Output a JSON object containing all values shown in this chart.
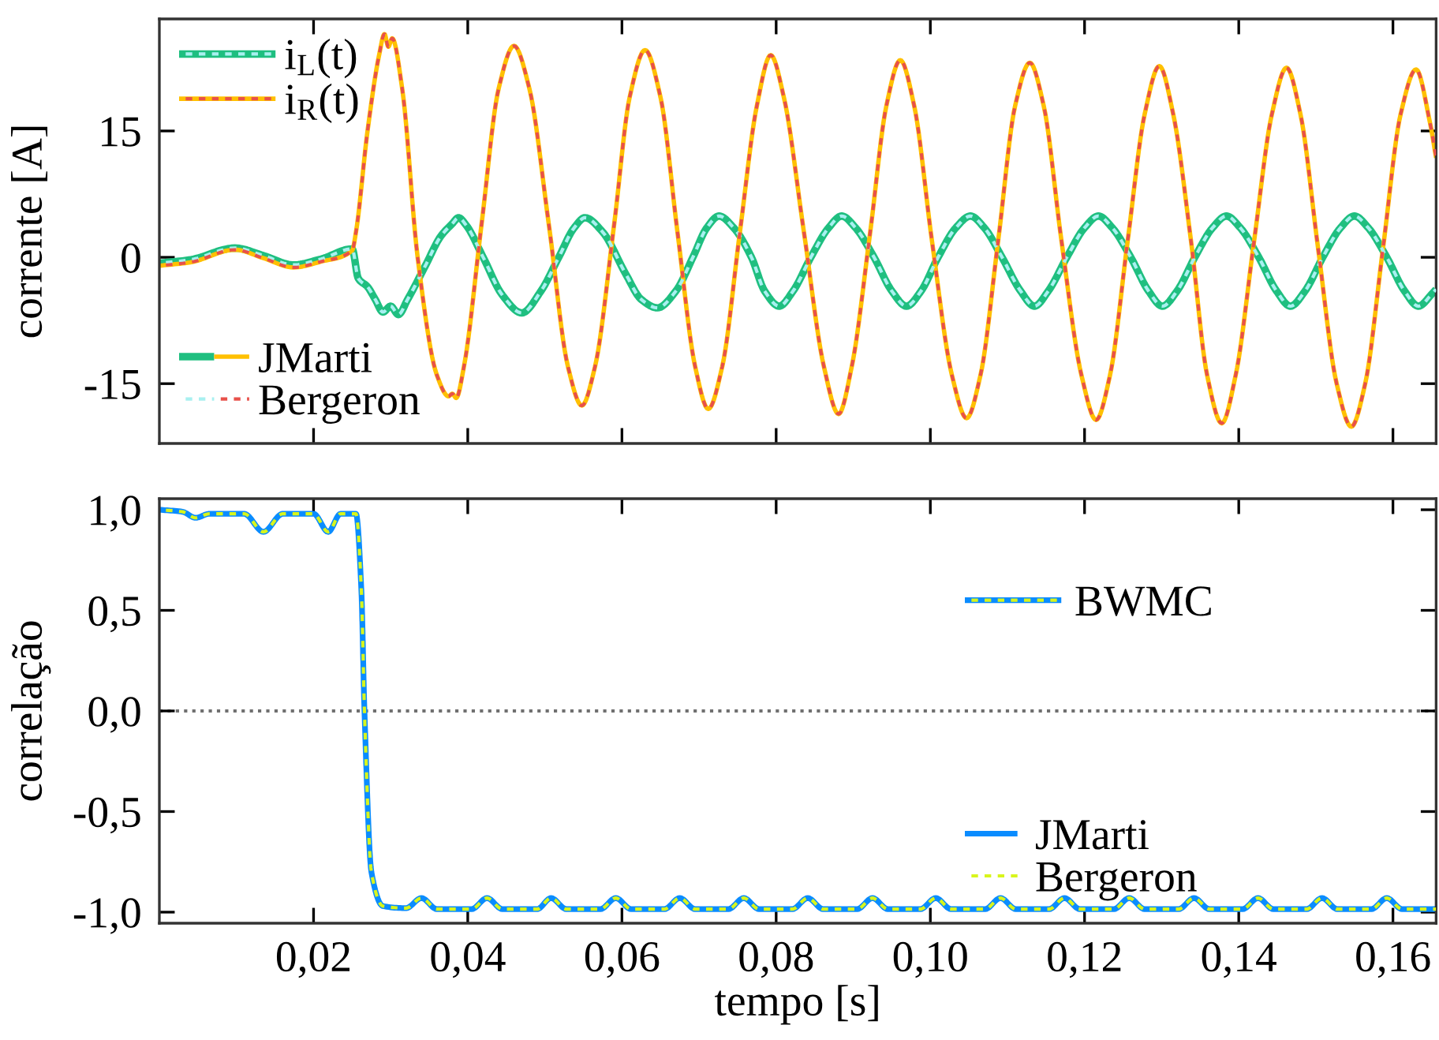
{
  "chart_data": [
    {
      "type": "line",
      "ylabel": "corrente [A]",
      "xlim": [
        0,
        0.1656
      ],
      "ylim": [
        -22.1,
        28.3
      ],
      "xticks": [
        {
          "value": 0.02,
          "label": null
        },
        {
          "value": 0.04,
          "label": null
        },
        {
          "value": 0.06,
          "label": null
        },
        {
          "value": 0.08,
          "label": null
        },
        {
          "value": 0.1,
          "label": null
        },
        {
          "value": 0.12,
          "label": null
        },
        {
          "value": 0.14,
          "label": null
        },
        {
          "value": 0.16,
          "label": null
        }
      ],
      "yticks": [
        {
          "value": -15,
          "label": "-15"
        },
        0,
        15
      ],
      "tick_labels": "y",
      "legend": "top left",
      "grid": false,
      "annotations": [
        "JMarti",
        "Bergeron"
      ],
      "series": [
        {
          "name": "i$_{L}$(t)",
          "color": "#1fbf80",
          "line_style": "solid",
          "x": [
            0,
            0.004,
            0.0098,
            0.0135,
            0.0174,
            0.021,
            0.025,
            0.0258,
            0.027,
            0.028,
            0.029,
            0.03,
            0.031,
            0.0322,
            0.0345,
            0.0365,
            0.038,
            0.0388,
            0.0398,
            0.042,
            0.0445,
            0.047,
            0.0495,
            0.0518,
            0.0538,
            0.0552,
            0.0575,
            0.0605,
            0.0625,
            0.0646,
            0.067,
            0.0692,
            0.071,
            0.0726,
            0.0745,
            0.0768,
            0.0785,
            0.0804,
            0.0822,
            0.0845,
            0.0868,
            0.0885,
            0.0903,
            0.0927,
            0.095,
            0.0969,
            0.0988,
            0.101,
            0.1033,
            0.1052,
            0.107,
            0.1093,
            0.1117,
            0.1135,
            0.1153,
            0.1177,
            0.12,
            0.1218,
            0.1236,
            0.126,
            0.1283,
            0.1301,
            0.132,
            0.1343,
            0.1366,
            0.1384,
            0.1402,
            0.1426,
            0.1449,
            0.1467,
            0.1486,
            0.1509,
            0.1532,
            0.155,
            0.1568,
            0.1592,
            0.1615,
            0.1633,
            0.1651,
            0.1656
          ],
          "values": [
            -0.7,
            -0.3,
            1.1,
            0.2,
            -0.9,
            -0.2,
            1.0,
            -2.5,
            -3.5,
            -5,
            -6.5,
            -5.8,
            -6.8,
            -5,
            -1,
            2.5,
            4.0,
            4.7,
            3.8,
            0,
            -4.5,
            -6.6,
            -4,
            0,
            3.5,
            4.7,
            3,
            -2,
            -5,
            -6.0,
            -4,
            0,
            3.5,
            4.9,
            3.5,
            0,
            -4,
            -5.8,
            -4,
            0,
            3.5,
            4.9,
            3.5,
            0,
            -4,
            -5.8,
            -4,
            0,
            3.5,
            4.9,
            3.5,
            0,
            -4,
            -5.8,
            -4,
            0,
            3.5,
            4.9,
            3.5,
            0,
            -4,
            -5.8,
            -4,
            0,
            3.5,
            4.9,
            3.5,
            0,
            -4,
            -5.8,
            -4,
            0,
            3.5,
            4.9,
            3.5,
            0,
            -4,
            -5.8,
            -4.3,
            -3.8
          ]
        },
        {
          "color": "#a8f0f0",
          "line_style": "dashed",
          "x": [
            0,
            0.004,
            0.0098,
            0.0135,
            0.0174,
            0.021,
            0.025,
            0.0258,
            0.027,
            0.028,
            0.029,
            0.03,
            0.031,
            0.0322,
            0.0345,
            0.0365,
            0.038,
            0.0388,
            0.0398,
            0.042,
            0.0445,
            0.047,
            0.0495,
            0.0518,
            0.0538,
            0.0552,
            0.0575,
            0.0605,
            0.0625,
            0.0646,
            0.067,
            0.0692,
            0.071,
            0.0726,
            0.0745,
            0.0768,
            0.0785,
            0.0804,
            0.0822,
            0.0845,
            0.0868,
            0.0885,
            0.0903,
            0.0927,
            0.095,
            0.0969,
            0.0988,
            0.101,
            0.1033,
            0.1052,
            0.107,
            0.1093,
            0.1117,
            0.1135,
            0.1153,
            0.1177,
            0.12,
            0.1218,
            0.1236,
            0.126,
            0.1283,
            0.1301,
            0.132,
            0.1343,
            0.1366,
            0.1384,
            0.1402,
            0.1426,
            0.1449,
            0.1467,
            0.1486,
            0.1509,
            0.1532,
            0.155,
            0.1568,
            0.1592,
            0.1615,
            0.1633,
            0.1651,
            0.1656
          ],
          "values": [
            -0.7,
            -0.3,
            1.1,
            0.2,
            -0.9,
            -0.2,
            1.0,
            -2.5,
            -3.5,
            -5,
            -6.5,
            -5.8,
            -6.8,
            -5,
            -1,
            2.5,
            4.0,
            4.7,
            3.8,
            0,
            -4.5,
            -6.6,
            -4,
            0,
            3.5,
            4.7,
            3,
            -2,
            -5,
            -6.0,
            -4,
            0,
            3.5,
            4.9,
            3.5,
            0,
            -4,
            -5.8,
            -4,
            0,
            3.5,
            4.9,
            3.5,
            0,
            -4,
            -5.8,
            -4,
            0,
            3.5,
            4.9,
            3.5,
            0,
            -4,
            -5.8,
            -4,
            0,
            3.5,
            4.9,
            3.5,
            0,
            -4,
            -5.8,
            -4,
            0,
            3.5,
            4.9,
            3.5,
            0,
            -4,
            -5.8,
            -4,
            0,
            3.5,
            4.9,
            3.5,
            0,
            -4,
            -5.8,
            -4.3,
            -3.8
          ]
        },
        {
          "name": "i$_{R}$(t)",
          "color": "#ffc000",
          "line_style": "solid",
          "x": [
            0,
            0.004,
            0.0098,
            0.0135,
            0.0174,
            0.021,
            0.025,
            0.0255,
            0.027,
            0.0285,
            0.0292,
            0.0297,
            0.0302,
            0.0315,
            0.0335,
            0.036,
            0.0375,
            0.038,
            0.0385,
            0.0395,
            0.0418,
            0.044,
            0.046,
            0.048,
            0.0505,
            0.053,
            0.0548,
            0.0565,
            0.059,
            0.061,
            0.063,
            0.065,
            0.0672,
            0.0695,
            0.0712,
            0.073,
            0.0753,
            0.0775,
            0.0793,
            0.081,
            0.0836,
            0.0862,
            0.0881,
            0.0898,
            0.0922,
            0.0943,
            0.0961,
            0.0979,
            0.1002,
            0.1028,
            0.1047,
            0.1065,
            0.1088,
            0.111,
            0.1129,
            0.1147,
            0.117,
            0.1196,
            0.1215,
            0.1233,
            0.1256,
            0.1278,
            0.1297,
            0.1315,
            0.1338,
            0.1359,
            0.1378,
            0.1396,
            0.142,
            0.1443,
            0.1462,
            0.148,
            0.1503,
            0.1527,
            0.1546,
            0.1564,
            0.1587,
            0.161,
            0.163,
            0.1648,
            0.1656
          ],
          "values": [
            -1.0,
            -0.6,
            0.9,
            -0.1,
            -1.2,
            -0.5,
            0.8,
            3,
            15,
            24,
            26.5,
            25,
            26,
            20,
            0,
            -14,
            -16.5,
            -16.2,
            -16.7,
            -13,
            4,
            20,
            25.1,
            20,
            4,
            -13,
            -17.6,
            -13,
            4,
            19,
            24.6,
            19,
            3,
            -13,
            -18,
            -13,
            3,
            18,
            24.0,
            19,
            3,
            -13,
            -18.6,
            -13,
            3,
            18,
            23.4,
            18,
            2,
            -14,
            -19.1,
            -14,
            2,
            18,
            23.1,
            18,
            2,
            -14,
            -19.3,
            -14,
            2,
            17,
            22.7,
            17,
            2,
            -14,
            -19.7,
            -14,
            2,
            17,
            22.5,
            17,
            1,
            -15,
            -20.1,
            -15,
            1,
            17,
            22.3,
            16,
            11.8
          ]
        },
        {
          "color": "#e8504a",
          "line_style": "dashed",
          "x": [
            0,
            0.004,
            0.0098,
            0.0135,
            0.0174,
            0.021,
            0.025,
            0.0255,
            0.027,
            0.0285,
            0.0292,
            0.0297,
            0.0302,
            0.0315,
            0.0335,
            0.036,
            0.0375,
            0.038,
            0.0385,
            0.0395,
            0.0418,
            0.044,
            0.046,
            0.048,
            0.0505,
            0.053,
            0.0548,
            0.0565,
            0.059,
            0.061,
            0.063,
            0.065,
            0.0672,
            0.0695,
            0.0712,
            0.073,
            0.0753,
            0.0775,
            0.0793,
            0.081,
            0.0836,
            0.0862,
            0.0881,
            0.0898,
            0.0922,
            0.0943,
            0.0961,
            0.0979,
            0.1002,
            0.1028,
            0.1047,
            0.1065,
            0.1088,
            0.111,
            0.1129,
            0.1147,
            0.117,
            0.1196,
            0.1215,
            0.1233,
            0.1256,
            0.1278,
            0.1297,
            0.1315,
            0.1338,
            0.1359,
            0.1378,
            0.1396,
            0.142,
            0.1443,
            0.1462,
            0.148,
            0.1503,
            0.1527,
            0.1546,
            0.1564,
            0.1587,
            0.161,
            0.163,
            0.1648,
            0.1656
          ],
          "values": [
            -1.0,
            -0.6,
            0.9,
            -0.1,
            -1.2,
            -0.5,
            0.8,
            3,
            15,
            24,
            26.5,
            25,
            26,
            20,
            0,
            -14,
            -16.5,
            -16.2,
            -16.7,
            -13,
            4,
            20,
            25.1,
            20,
            4,
            -13,
            -17.6,
            -13,
            4,
            19,
            24.6,
            19,
            3,
            -13,
            -18,
            -13,
            3,
            18,
            24.0,
            19,
            3,
            -13,
            -18.6,
            -13,
            3,
            18,
            23.4,
            18,
            2,
            -14,
            -19.1,
            -14,
            2,
            18,
            23.1,
            18,
            2,
            -14,
            -19.3,
            -14,
            2,
            17,
            22.7,
            17,
            2,
            -14,
            -19.7,
            -14,
            2,
            17,
            22.5,
            17,
            1,
            -15,
            -20.1,
            -15,
            1,
            17,
            22.3,
            16,
            11.8
          ]
        }
      ]
    },
    {
      "type": "line",
      "xlabel": "tempo [s]",
      "ylabel": "correlação",
      "xlim": [
        0,
        0.1656
      ],
      "ylim": [
        -1.055,
        1.055
      ],
      "xticks": [
        {
          "value": 0.02,
          "label": "0,02"
        },
        {
          "value": 0.04,
          "label": "0,04"
        },
        {
          "value": 0.06,
          "label": "0,06"
        },
        {
          "value": 0.08,
          "label": "0,08"
        },
        {
          "value": 0.1,
          "label": "0,10"
        },
        {
          "value": 0.12,
          "label": "0,12"
        },
        {
          "value": 0.14,
          "label": "0,14"
        },
        {
          "value": 0.16,
          "label": "0,16"
        }
      ],
      "yticks": [
        {
          "value": -1,
          "label": "-1,0"
        },
        {
          "value": -0.5,
          "label": "-0,5"
        },
        {
          "value": 0,
          "label": "0,0"
        },
        {
          "value": 0.5,
          "label": "0,5"
        },
        {
          "value": 1,
          "label": "1,0"
        }
      ],
      "legend": "bottom",
      "grid": false,
      "annotations": [
        "BWMC"
      ],
      "ref_lines": [
        {
          "axis": "y",
          "value": 0,
          "color": "#707070",
          "line_style": "dotted"
        }
      ],
      "series": [
        {
          "name": "JMarti",
          "color": "#0a8cff",
          "line_style": "solid",
          "x": [
            0,
            0.003,
            0.0047,
            0.0065,
            0.011,
            0.0135,
            0.016,
            0.02,
            0.0219,
            0.0235,
            0.0255,
            0.0262,
            0.0266,
            0.0275,
            0.029,
            0.032,
            0.034,
            0.036,
            0.0405,
            0.0425,
            0.0445,
            0.049,
            0.0508,
            0.0528,
            0.0572,
            0.0592,
            0.0612,
            0.0655,
            0.0675,
            0.0695,
            0.0738,
            0.0758,
            0.0778,
            0.0821,
            0.0841,
            0.0861,
            0.0905,
            0.0925,
            0.0945,
            0.0987,
            0.1007,
            0.1027,
            0.1071,
            0.1091,
            0.1111,
            0.1154,
            0.1174,
            0.1194,
            0.1238,
            0.1258,
            0.1278,
            0.1322,
            0.1342,
            0.1362,
            0.1405,
            0.1425,
            0.1445,
            0.1488,
            0.1508,
            0.1528,
            0.1572,
            0.1592,
            0.1612,
            0.1656
          ],
          "values": [
            1.0,
            0.99,
            0.96,
            0.98,
            0.98,
            0.89,
            0.98,
            0.98,
            0.89,
            0.98,
            0.98,
            0.6,
            0.0,
            -0.8,
            -0.97,
            -0.98,
            -0.93,
            -0.985,
            -0.985,
            -0.93,
            -0.985,
            -0.985,
            -0.93,
            -0.985,
            -0.985,
            -0.93,
            -0.985,
            -0.985,
            -0.93,
            -0.985,
            -0.985,
            -0.93,
            -0.985,
            -0.985,
            -0.93,
            -0.985,
            -0.985,
            -0.93,
            -0.985,
            -0.985,
            -0.93,
            -0.985,
            -0.985,
            -0.93,
            -0.985,
            -0.985,
            -0.93,
            -0.985,
            -0.985,
            -0.93,
            -0.985,
            -0.985,
            -0.93,
            -0.985,
            -0.985,
            -0.93,
            -0.985,
            -0.985,
            -0.93,
            -0.985,
            -0.985,
            -0.93,
            -0.985,
            -0.985
          ]
        },
        {
          "name": "Bergeron",
          "color": "#d8f51c",
          "line_style": "dashed",
          "x": [
            0,
            0.003,
            0.0047,
            0.0065,
            0.011,
            0.0135,
            0.016,
            0.02,
            0.0219,
            0.0235,
            0.0255,
            0.0262,
            0.0266,
            0.0275,
            0.029,
            0.032,
            0.034,
            0.036,
            0.0405,
            0.0425,
            0.0445,
            0.049,
            0.0508,
            0.0528,
            0.0572,
            0.0592,
            0.0612,
            0.0655,
            0.0675,
            0.0695,
            0.0738,
            0.0758,
            0.0778,
            0.0821,
            0.0841,
            0.0861,
            0.0905,
            0.0925,
            0.0945,
            0.0987,
            0.1007,
            0.1027,
            0.1071,
            0.1091,
            0.1111,
            0.1154,
            0.1174,
            0.1194,
            0.1238,
            0.1258,
            0.1278,
            0.1322,
            0.1342,
            0.1362,
            0.1405,
            0.1425,
            0.1445,
            0.1488,
            0.1508,
            0.1528,
            0.1572,
            0.1592,
            0.1612,
            0.1656
          ],
          "values": [
            1.0,
            0.99,
            0.96,
            0.98,
            0.98,
            0.89,
            0.98,
            0.98,
            0.89,
            0.98,
            0.98,
            0.6,
            0.0,
            -0.8,
            -0.97,
            -0.98,
            -0.93,
            -0.985,
            -0.985,
            -0.93,
            -0.985,
            -0.985,
            -0.93,
            -0.985,
            -0.985,
            -0.93,
            -0.985,
            -0.985,
            -0.93,
            -0.985,
            -0.985,
            -0.93,
            -0.985,
            -0.985,
            -0.93,
            -0.985,
            -0.985,
            -0.93,
            -0.985,
            -0.985,
            -0.93,
            -0.985,
            -0.985,
            -0.93,
            -0.985,
            -0.985,
            -0.93,
            -0.985,
            -0.985,
            -0.93,
            -0.985,
            -0.985,
            -0.93,
            -0.985,
            -0.985,
            -0.93,
            -0.985,
            -0.985,
            -0.93,
            -0.985,
            -0.985,
            -0.93,
            -0.985,
            -0.985
          ]
        }
      ]
    }
  ]
}
